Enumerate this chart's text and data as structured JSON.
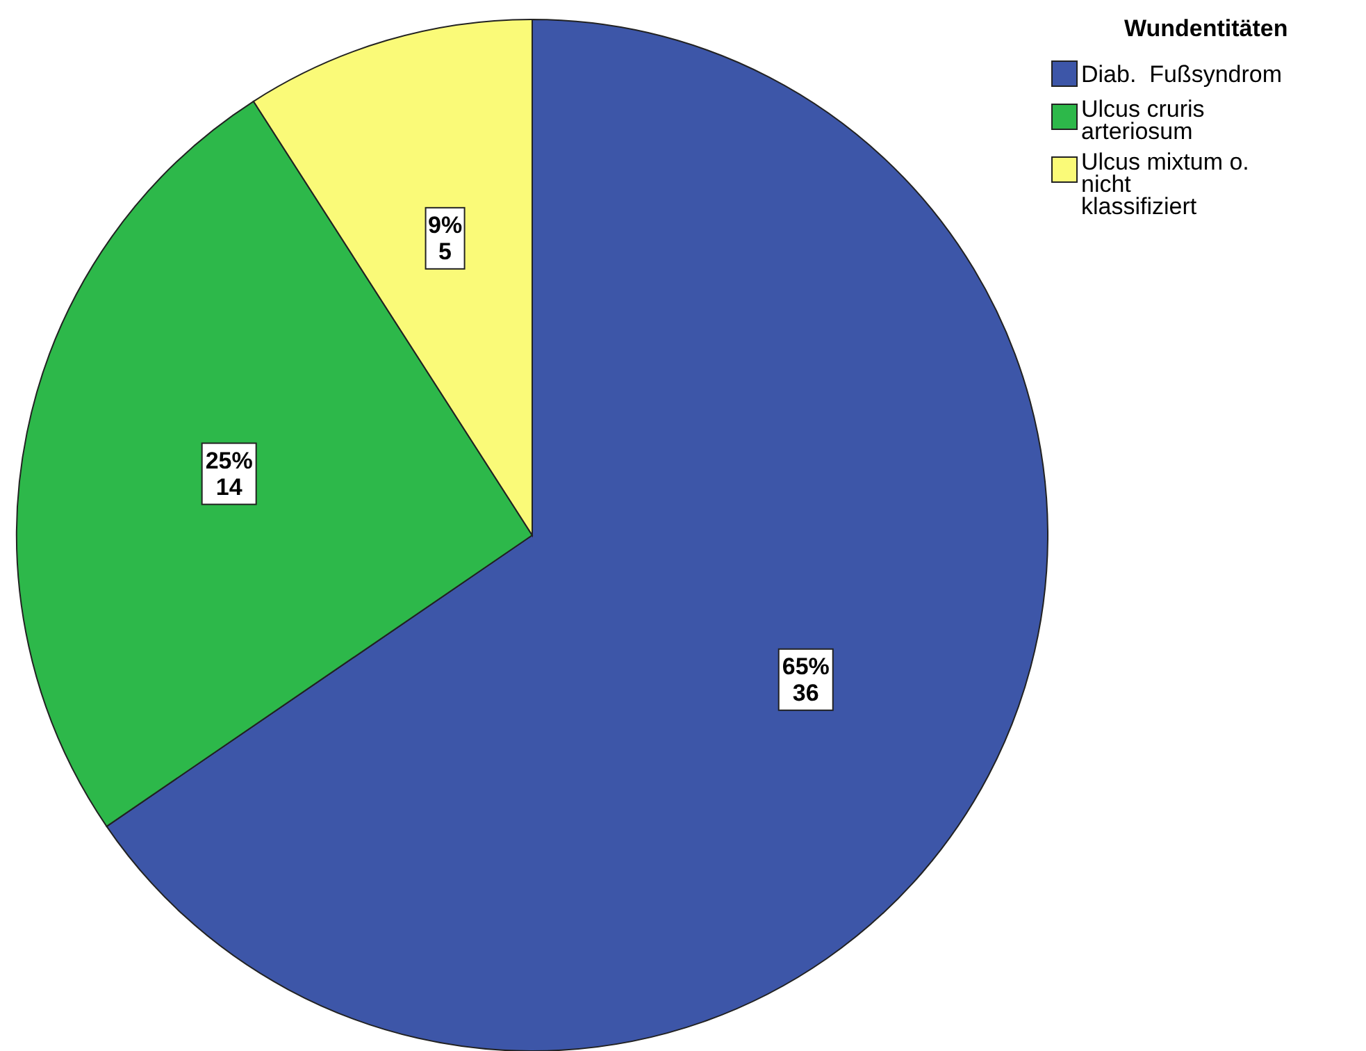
{
  "chart_data": {
    "type": "pie",
    "legend_title": "Wundentitäten",
    "legend": "top right",
    "categories": [
      "Diab.  Fußsyndrom",
      "Ulcus cruris arteriosum",
      "Ulcus mixtum o. nicht klassifiziert"
    ],
    "values": [
      36,
      14,
      5
    ],
    "colors": [
      "#3d56a8",
      "#2db84a",
      "#fafa78"
    ],
    "value_labels": [
      "65%\n36",
      "25%\n14",
      "9%\n5"
    ]
  }
}
